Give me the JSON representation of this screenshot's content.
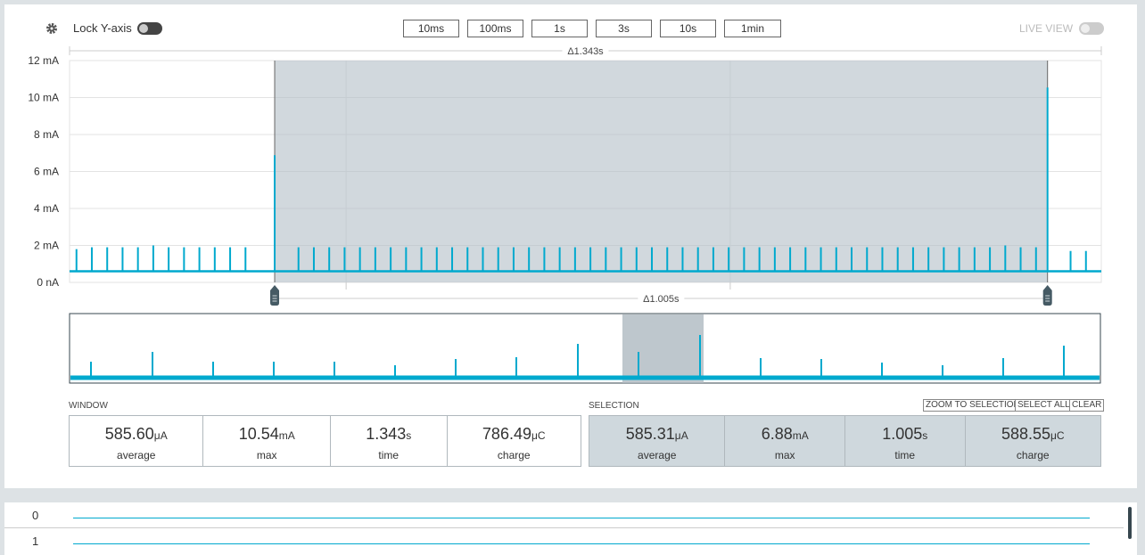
{
  "toolbar": {
    "lock_label": "Lock Y-axis",
    "buttons": [
      "10ms",
      "100ms",
      "1s",
      "3s",
      "10s",
      "1min"
    ],
    "live_view": "LIVE VIEW"
  },
  "chart_data": {
    "type": "spikes",
    "window_delta": "Δ1.343s",
    "selection_delta": "Δ1.005s",
    "xlim": [
      0,
      1.343
    ],
    "xticks": [
      0.36,
      0.86
    ],
    "ylim": [
      0,
      12
    ],
    "yticks": [
      {
        "value": 0,
        "label": "0 nA"
      },
      {
        "value": 2,
        "label": "2 mA"
      },
      {
        "value": 4,
        "label": "4 mA"
      },
      {
        "value": 6,
        "label": "6 mA"
      },
      {
        "value": 8,
        "label": "8 mA"
      },
      {
        "value": 10,
        "label": "10 mA"
      },
      {
        "value": 12,
        "label": "12 mA"
      }
    ],
    "grid": true,
    "selection": [
      0.267,
      1.273
    ],
    "baseline": 0.6,
    "color": "#00a9ce",
    "x": [
      0.009,
      0.029,
      0.049,
      0.069,
      0.089,
      0.109,
      0.129,
      0.149,
      0.169,
      0.189,
      0.209,
      0.229,
      0.267,
      0.298,
      0.318,
      0.338,
      0.358,
      0.378,
      0.398,
      0.418,
      0.438,
      0.458,
      0.478,
      0.498,
      0.518,
      0.538,
      0.558,
      0.578,
      0.598,
      0.618,
      0.638,
      0.658,
      0.678,
      0.698,
      0.718,
      0.738,
      0.758,
      0.778,
      0.798,
      0.818,
      0.838,
      0.858,
      0.878,
      0.898,
      0.918,
      0.938,
      0.958,
      0.978,
      0.998,
      1.018,
      1.038,
      1.058,
      1.078,
      1.098,
      1.118,
      1.138,
      1.158,
      1.178,
      1.198,
      1.218,
      1.238,
      1.258,
      1.273,
      1.303,
      1.323
    ],
    "values": [
      1.8,
      1.9,
      1.9,
      1.9,
      1.9,
      2.0,
      1.9,
      1.9,
      1.9,
      1.9,
      1.9,
      1.9,
      6.88,
      1.9,
      1.9,
      1.9,
      1.9,
      1.9,
      1.9,
      1.9,
      1.9,
      1.9,
      1.9,
      1.9,
      1.9,
      1.9,
      1.9,
      1.9,
      1.9,
      1.9,
      1.9,
      1.9,
      1.9,
      1.9,
      1.9,
      1.9,
      1.9,
      1.9,
      1.9,
      1.9,
      1.9,
      1.9,
      1.9,
      1.9,
      1.9,
      1.9,
      1.9,
      1.9,
      1.9,
      1.9,
      1.9,
      1.9,
      1.9,
      1.9,
      1.9,
      1.9,
      1.9,
      1.9,
      1.9,
      2.0,
      1.9,
      1.9,
      10.54,
      1.7,
      1.7
    ]
  },
  "window": {
    "title": "WINDOW",
    "stats": [
      {
        "value": "585.60",
        "unit": "μA",
        "label": "average"
      },
      {
        "value": "10.54",
        "unit": "mA",
        "label": "max"
      },
      {
        "value": "1.343",
        "unit": "s",
        "label": "time"
      },
      {
        "value": "786.49",
        "unit": "μC",
        "label": "charge"
      }
    ]
  },
  "selection": {
    "title": "SELECTION",
    "buttons": [
      "ZOOM TO SELECTION",
      "SELECT ALL",
      "CLEAR"
    ],
    "stats": [
      {
        "value": "585.31",
        "unit": "μA",
        "label": "average"
      },
      {
        "value": "6.88",
        "unit": "mA",
        "label": "max"
      },
      {
        "value": "1.005",
        "unit": "s",
        "label": "time"
      },
      {
        "value": "588.55",
        "unit": "μC",
        "label": "charge"
      }
    ]
  },
  "digital_channels": [
    "0",
    "1"
  ]
}
